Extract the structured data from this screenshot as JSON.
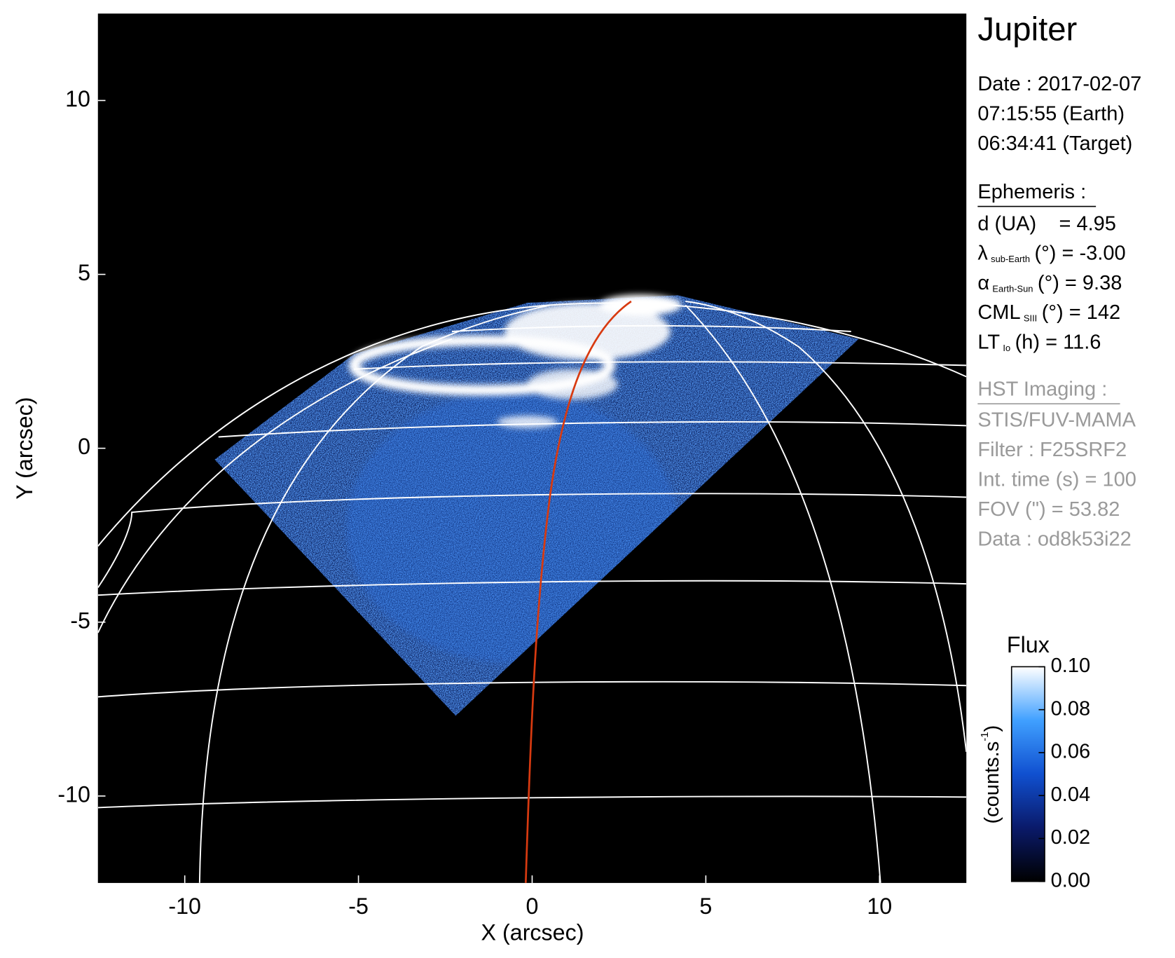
{
  "chart_data": {
    "type": "image",
    "title": "Jupiter",
    "x_label": "X (arcsec)",
    "y_label": "Y (arcsec)",
    "xlim": [
      -12.5,
      12.5
    ],
    "ylim": [
      -12.5,
      12.5
    ],
    "xticks": [
      -10,
      -5,
      0,
      5,
      10
    ],
    "yticks": [
      -10,
      -5,
      0,
      5,
      10
    ],
    "date": [
      "Date : 2017-02-07",
      "07:15:55 (Earth)",
      "06:34:41 (Target)"
    ],
    "ephemeris_title": "Ephemeris :",
    "ephemeris": [
      {
        "main": "d (UA)",
        "rest": "= 4.95"
      },
      {
        "main": "λ",
        "sub": "sub-Earth",
        "rest": "(°) = -3.00"
      },
      {
        "main": "α",
        "sub": "Earth-Sun",
        "rest": "(°) = 9.38"
      },
      {
        "main": "CML",
        "sub": "SIII",
        "rest": "(°) = 142"
      },
      {
        "main": "LT",
        "sub": "Io",
        "rest": "(h) = 11.6"
      }
    ],
    "imaging_title": "HST Imaging :",
    "imaging": [
      "STIS/FUV-MAMA",
      "Filter : F25SRF2",
      "Int. time (s) = 100",
      "FOV (\") = 53.82",
      "Data : od8k53i22"
    ],
    "colorbar": {
      "title": "Flux",
      "label": "(counts.s",
      "label_sup": "-1",
      "label_end": ")",
      "ylim": [
        0,
        0.1
      ],
      "yticks": [
        {
          "value": 0,
          "label": "0.00"
        },
        {
          "value": 0.02,
          "label": "0.02"
        },
        {
          "value": 0.04,
          "label": "0.04"
        },
        {
          "value": 0.06,
          "label": "0.06"
        },
        {
          "value": 0.08,
          "label": "0.08"
        },
        {
          "value": 0.1,
          "label": "0.10"
        }
      ]
    }
  }
}
